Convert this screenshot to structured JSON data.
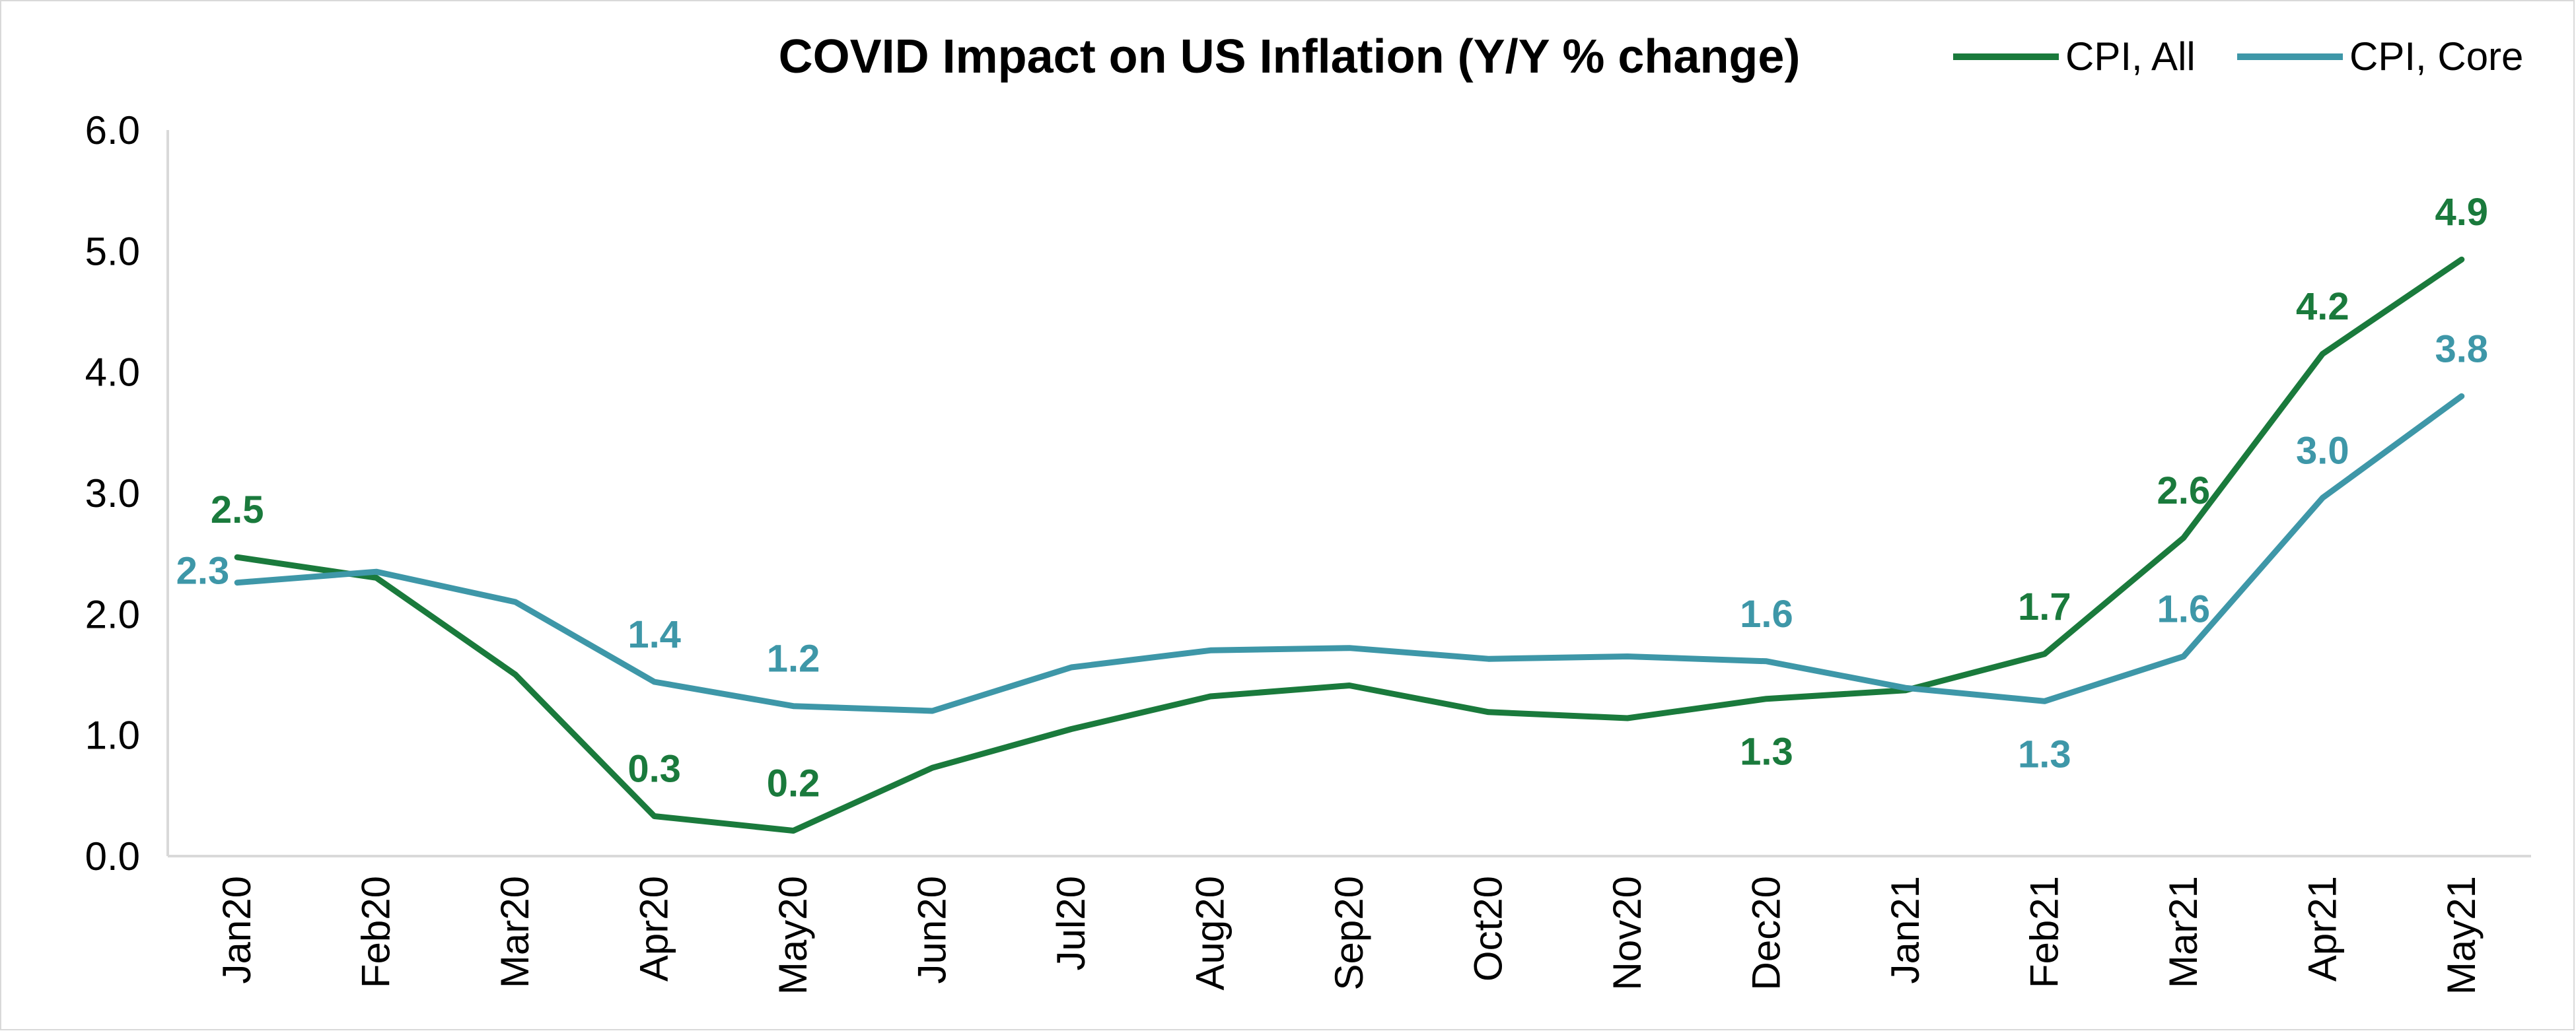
{
  "chart_data": {
    "type": "line",
    "title": "COVID Impact on US Inflation (Y/Y % change)",
    "xlabel": "",
    "ylabel": "",
    "ylim": [
      0,
      6
    ],
    "yticks": [
      "0.0",
      "1.0",
      "2.0",
      "3.0",
      "4.0",
      "5.0",
      "6.0"
    ],
    "categories": [
      "Jan20",
      "Feb20",
      "Mar20",
      "Apr20",
      "May20",
      "Jun20",
      "Jul20",
      "Aug20",
      "Sep20",
      "Oct20",
      "Nov20",
      "Dec20",
      "Jan21",
      "Feb21",
      "Mar21",
      "Apr21",
      "May21"
    ],
    "grid": false,
    "legend_position": "top-right",
    "series": [
      {
        "name": "CPI, All",
        "color": "#1a7a3c",
        "values": [
          2.47,
          2.3,
          1.5,
          0.33,
          0.21,
          0.73,
          1.05,
          1.32,
          1.41,
          1.19,
          1.14,
          1.3,
          1.37,
          1.67,
          2.63,
          4.15,
          4.93
        ],
        "labels": [
          {
            "index": 0,
            "text": "2.5",
            "pos": "above"
          },
          {
            "index": 3,
            "text": "0.3",
            "pos": "above"
          },
          {
            "index": 4,
            "text": "0.2",
            "pos": "above"
          },
          {
            "index": 11,
            "text": "1.3",
            "pos": "below"
          },
          {
            "index": 13,
            "text": "1.7",
            "pos": "above"
          },
          {
            "index": 14,
            "text": "2.6",
            "pos": "above"
          },
          {
            "index": 15,
            "text": "4.2",
            "pos": "above"
          },
          {
            "index": 16,
            "text": "4.9",
            "pos": "above"
          }
        ]
      },
      {
        "name": "CPI, Core",
        "color": "#3e97a8",
        "values": [
          2.26,
          2.35,
          2.1,
          1.44,
          1.24,
          1.2,
          1.56,
          1.7,
          1.72,
          1.63,
          1.65,
          1.61,
          1.39,
          1.28,
          1.65,
          2.96,
          3.8
        ],
        "labels": [
          {
            "index": 0,
            "text": "2.3",
            "pos": "left"
          },
          {
            "index": 3,
            "text": "1.4",
            "pos": "above"
          },
          {
            "index": 4,
            "text": "1.2",
            "pos": "above"
          },
          {
            "index": 11,
            "text": "1.6",
            "pos": "above"
          },
          {
            "index": 13,
            "text": "1.3",
            "pos": "below"
          },
          {
            "index": 14,
            "text": "1.6",
            "pos": "above"
          },
          {
            "index": 15,
            "text": "3.0",
            "pos": "above"
          },
          {
            "index": 16,
            "text": "3.8",
            "pos": "above"
          }
        ]
      }
    ]
  }
}
